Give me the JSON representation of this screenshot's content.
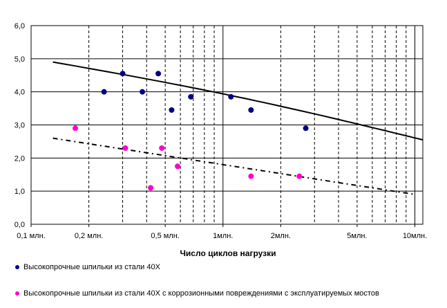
{
  "chart_data": {
    "type": "scatter",
    "title": "",
    "xlabel": "Число циклов нагрузки",
    "ylabel": "",
    "x_scale": "log",
    "xlim": [
      100000,
      11000000
    ],
    "ylim": [
      0,
      6
    ],
    "grid": true,
    "legend_position": "bottom",
    "y_ticks": [
      {
        "value": 0,
        "label": "0,0"
      },
      {
        "value": 1,
        "label": "1,0"
      },
      {
        "value": 2,
        "label": "2,0"
      },
      {
        "value": 3,
        "label": "3,0"
      },
      {
        "value": 4,
        "label": "4,0"
      },
      {
        "value": 5,
        "label": "5,0"
      },
      {
        "value": 6,
        "label": "6,0"
      }
    ],
    "x_ticks": [
      {
        "value": 100000,
        "label": "0,1 млн."
      },
      {
        "value": 200000,
        "label": "0,2 млн."
      },
      {
        "value": 500000,
        "label": "0,5 млн."
      },
      {
        "value": 1000000,
        "label": "1млн."
      },
      {
        "value": 2000000,
        "label": "2млн."
      },
      {
        "value": 5000000,
        "label": "5млн."
      },
      {
        "value": 10000000,
        "label": "10млн."
      }
    ],
    "series": [
      {
        "name": "Высокопрочные шпильки из стали 40Х",
        "color": "#000080",
        "points": [
          {
            "x": 240000,
            "y": 4.0
          },
          {
            "x": 300000,
            "y": 4.55
          },
          {
            "x": 380000,
            "y": 4.0
          },
          {
            "x": 460000,
            "y": 4.55
          },
          {
            "x": 540000,
            "y": 3.45
          },
          {
            "x": 680000,
            "y": 3.85
          },
          {
            "x": 1100000,
            "y": 3.85
          },
          {
            "x": 1400000,
            "y": 3.45
          },
          {
            "x": 2700000,
            "y": 2.9
          }
        ],
        "trend": {
          "style": "solid",
          "x": [
            130000,
            11000000
          ],
          "y": [
            4.9,
            2.55
          ]
        }
      },
      {
        "name": "Высокопрочные шпильки из стали 40Х с коррозионными повреждениями с эксплуатируемых мостов",
        "color": "#ff00cc",
        "points": [
          {
            "x": 170000,
            "y": 2.9
          },
          {
            "x": 310000,
            "y": 2.3
          },
          {
            "x": 420000,
            "y": 1.1
          },
          {
            "x": 480000,
            "y": 2.3
          },
          {
            "x": 580000,
            "y": 1.75
          },
          {
            "x": 1400000,
            "y": 1.45
          },
          {
            "x": 2500000,
            "y": 1.45
          }
        ],
        "trend": {
          "style": "dashed",
          "x": [
            130000,
            10000000
          ],
          "y": [
            2.6,
            0.9
          ]
        }
      }
    ]
  }
}
